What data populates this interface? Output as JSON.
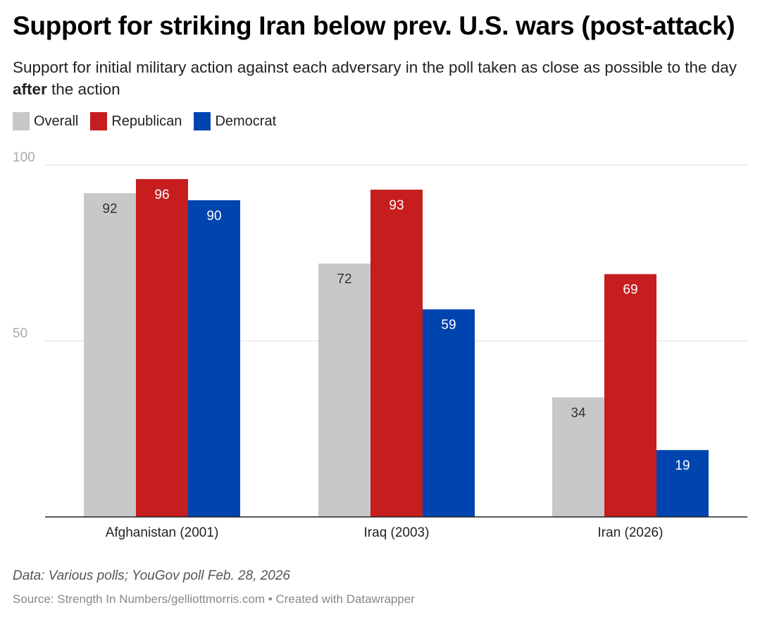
{
  "header": {
    "title": "Support for striking Iran below prev. U.S. wars (post-attack)",
    "subtitle_pre": "Support for initial military action against each adversary in the poll taken as close as possible to the day ",
    "subtitle_bold": "after",
    "subtitle_post": " the action"
  },
  "colors": {
    "overall": "#c8c8c8",
    "republican": "#c61e1e",
    "democrat": "#0044b0",
    "gridline": "#e0e0e0",
    "axis": "#222222"
  },
  "chart_data": {
    "type": "bar",
    "categories": [
      "Afghanistan (2001)",
      "Iraq (2003)",
      "Iran (2026)"
    ],
    "series": [
      {
        "name": "Overall",
        "values": [
          92,
          72,
          34
        ]
      },
      {
        "name": "Republican",
        "values": [
          96,
          93,
          69
        ]
      },
      {
        "name": "Democrat",
        "values": [
          90,
          59,
          19
        ]
      }
    ],
    "ylim": [
      0,
      100
    ],
    "yticks": [
      50,
      100
    ],
    "legend_position": "top-left",
    "grid": true
  },
  "footer": {
    "note": "Data: Various polls; YouGov poll Feb. 28, 2026",
    "source": "Source: Strength In Numbers/gelliottmorris.com • Created with Datawrapper"
  }
}
